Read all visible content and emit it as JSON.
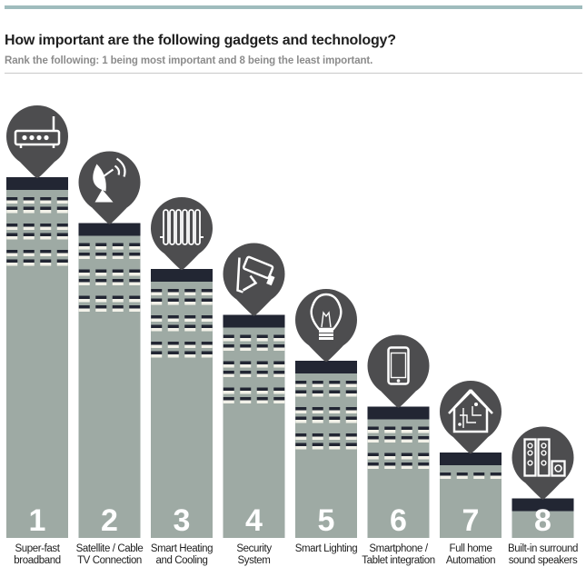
{
  "title": "How important are the following gadgets and technology?",
  "subtitle": "Rank the following: 1 being most important and 8 being the least important.",
  "colors": {
    "building": "#9eaaa4",
    "roof": "#222633",
    "pin": "#4d4d4f",
    "window_dark": "#222633",
    "window_light": "#f2f1e8",
    "rank_text": "#ffffff",
    "accent_rule": "#9fbcbd"
  },
  "chart_data": {
    "type": "bar",
    "title": "How important are the following gadgets and technology?",
    "subtitle": "Rank the following: 1 being most important and 8 being the least important.",
    "categories": [
      "Super-fast broadband",
      "Satellite / Cable TV Connection",
      "Smart Heating and Cooling",
      "Security System",
      "Smart Lighting",
      "Smartphone / Tablet integration",
      "Full home Automation",
      "Built-in surround sound speakers"
    ],
    "values": [
      1,
      2,
      3,
      4,
      5,
      6,
      7,
      8
    ],
    "items": [
      {
        "rank": "1",
        "label_lines": [
          "Super-fast",
          "broadband"
        ],
        "icon": "router-icon"
      },
      {
        "rank": "2",
        "label_lines": [
          "Satellite / Cable",
          "TV Connection"
        ],
        "icon": "satellite-dish-icon"
      },
      {
        "rank": "3",
        "label_lines": [
          "Smart Heating",
          "and Cooling"
        ],
        "icon": "radiator-icon"
      },
      {
        "rank": "4",
        "label_lines": [
          "Security",
          "System"
        ],
        "icon": "security-camera-icon"
      },
      {
        "rank": "5",
        "label_lines": [
          "Smart Lighting"
        ],
        "icon": "light-bulb-icon"
      },
      {
        "rank": "6",
        "label_lines": [
          "Smartphone /",
          "Tablet integration"
        ],
        "icon": "smartphone-icon"
      },
      {
        "rank": "7",
        "label_lines": [
          "Full home",
          "Automation"
        ],
        "icon": "smart-home-icon"
      },
      {
        "rank": "8",
        "label_lines": [
          "Built-in surround",
          "sound speakers"
        ],
        "icon": "speakers-icon"
      }
    ],
    "xlabel": "",
    "ylabel": "",
    "grid": false,
    "legend": "none"
  }
}
